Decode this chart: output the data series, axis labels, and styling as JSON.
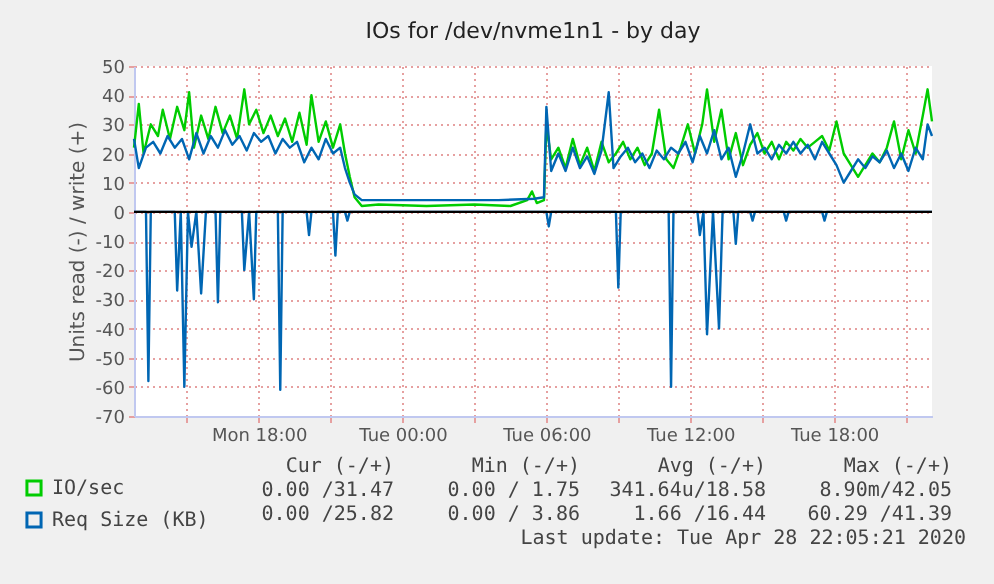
{
  "chart_data": {
    "type": "line",
    "title": "IOs for /dev/nvme1n1 - by day",
    "ylabel": "Units read (-) / write (+)",
    "xlim": [
      "2020-04-27T12:48",
      "2020-04-28T22:05"
    ],
    "ylim": [
      -70,
      50
    ],
    "xticks": [
      {
        "value": "2020-04-27T15:00",
        "label": null
      },
      {
        "value": "2020-04-27T18:00",
        "label": "Mon 18:00"
      },
      {
        "value": "2020-04-27T21:00",
        "label": null
      },
      {
        "value": "2020-04-28T00:00",
        "label": "Tue 00:00"
      },
      {
        "value": "2020-04-28T03:00",
        "label": null
      },
      {
        "value": "2020-04-28T06:00",
        "label": "Tue 06:00"
      },
      {
        "value": "2020-04-28T09:00",
        "label": null
      },
      {
        "value": "2020-04-28T12:00",
        "label": "Tue 12:00"
      },
      {
        "value": "2020-04-28T15:00",
        "label": null
      },
      {
        "value": "2020-04-28T18:00",
        "label": "Tue 18:00"
      },
      {
        "value": "2020-04-28T21:00",
        "label": null
      }
    ],
    "yticks": [
      -70,
      -60,
      -50,
      -40,
      -30,
      -20,
      -10,
      0,
      10,
      20,
      30,
      40,
      50
    ],
    "grid": true,
    "legend": "bottom left",
    "marker": "none",
    "line_style": "solid",
    "ref_lines": [
      {
        "axis": "y",
        "value": 0,
        "label": null,
        "color": "#000000"
      }
    ],
    "series": [
      {
        "name": "IO/sec",
        "color": "#00cc00",
        "x": [
          "2020-04-27T12:48",
          "2020-04-27T13:00",
          "2020-04-27T13:12",
          "2020-04-27T13:30",
          "2020-04-27T13:48",
          "2020-04-27T14:00",
          "2020-04-27T14:18",
          "2020-04-27T14:36",
          "2020-04-27T14:54",
          "2020-04-27T15:06",
          "2020-04-27T15:18",
          "2020-04-27T15:36",
          "2020-04-27T15:54",
          "2020-04-27T16:12",
          "2020-04-27T16:30",
          "2020-04-27T16:48",
          "2020-04-27T17:06",
          "2020-04-27T17:24",
          "2020-04-27T17:36",
          "2020-04-27T17:54",
          "2020-04-27T18:12",
          "2020-04-27T18:30",
          "2020-04-27T18:48",
          "2020-04-27T19:06",
          "2020-04-27T19:24",
          "2020-04-27T19:42",
          "2020-04-27T20:00",
          "2020-04-27T20:12",
          "2020-04-27T20:30",
          "2020-04-27T20:48",
          "2020-04-27T21:06",
          "2020-04-27T21:24",
          "2020-04-27T21:36",
          "2020-04-27T21:48",
          "2020-04-27T22:00",
          "2020-04-27T22:18",
          "2020-04-27T23:00",
          "2020-04-28T01:00",
          "2020-04-28T03:00",
          "2020-04-28T04:30",
          "2020-04-28T05:12",
          "2020-04-28T05:24",
          "2020-04-28T05:36",
          "2020-04-28T05:54",
          "2020-04-28T06:00",
          "2020-04-28T06:12",
          "2020-04-28T06:30",
          "2020-04-28T06:48",
          "2020-04-28T07:06",
          "2020-04-28T07:24",
          "2020-04-28T07:42",
          "2020-04-28T08:00",
          "2020-04-28T08:18",
          "2020-04-28T08:36",
          "2020-04-28T08:54",
          "2020-04-28T09:12",
          "2020-04-28T09:30",
          "2020-04-28T09:48",
          "2020-04-28T10:06",
          "2020-04-28T10:24",
          "2020-04-28T10:42",
          "2020-04-28T11:00",
          "2020-04-28T11:18",
          "2020-04-28T11:36",
          "2020-04-28T11:54",
          "2020-04-28T12:12",
          "2020-04-28T12:30",
          "2020-04-28T12:42",
          "2020-04-28T13:00",
          "2020-04-28T13:18",
          "2020-04-28T13:36",
          "2020-04-28T13:54",
          "2020-04-28T14:12",
          "2020-04-28T14:30",
          "2020-04-28T14:48",
          "2020-04-28T15:06",
          "2020-04-28T15:24",
          "2020-04-28T15:42",
          "2020-04-28T16:00",
          "2020-04-28T16:18",
          "2020-04-28T16:36",
          "2020-04-28T16:54",
          "2020-04-28T17:12",
          "2020-04-28T17:30",
          "2020-04-28T17:48",
          "2020-04-28T18:06",
          "2020-04-28T18:24",
          "2020-04-28T18:42",
          "2020-04-28T19:00",
          "2020-04-28T19:18",
          "2020-04-28T19:36",
          "2020-04-28T19:54",
          "2020-04-28T20:12",
          "2020-04-28T20:30",
          "2020-04-28T20:48",
          "2020-04-28T21:06",
          "2020-04-28T21:24",
          "2020-04-28T21:42",
          "2020-04-28T21:54",
          "2020-04-28T22:05"
        ],
        "values": [
          22,
          37,
          20,
          30,
          26,
          35,
          25,
          36,
          28,
          41,
          22,
          33,
          25,
          36,
          27,
          33,
          25,
          42,
          30,
          35,
          27,
          33,
          26,
          32,
          24,
          34,
          23,
          40,
          24,
          31,
          22,
          30,
          20,
          12,
          5,
          2,
          2.5,
          2,
          2.5,
          2,
          4,
          7,
          3,
          4,
          30,
          18,
          22,
          15,
          25,
          16,
          22,
          14,
          24,
          17,
          20,
          24,
          18,
          22,
          16,
          20,
          35,
          18,
          15,
          22,
          30,
          20,
          30,
          42,
          24,
          35,
          18,
          27,
          16,
          23,
          27,
          20,
          24,
          18,
          24,
          21,
          25,
          22,
          24,
          26,
          21,
          31,
          20,
          16,
          12,
          16,
          20,
          17,
          22,
          31,
          18,
          28,
          20,
          33,
          42,
          31
        ]
      },
      {
        "name": "Req Size (KB)",
        "color": "#0066b3",
        "x": [
          "2020-04-27T12:48",
          "2020-04-27T13:00",
          "2020-04-27T13:18",
          "2020-04-27T13:36",
          "2020-04-27T13:54",
          "2020-04-27T14:12",
          "2020-04-27T14:30",
          "2020-04-27T14:48",
          "2020-04-27T15:06",
          "2020-04-27T15:24",
          "2020-04-27T15:42",
          "2020-04-27T16:00",
          "2020-04-27T16:18",
          "2020-04-27T16:36",
          "2020-04-27T16:54",
          "2020-04-27T17:12",
          "2020-04-27T17:30",
          "2020-04-27T17:48",
          "2020-04-27T18:06",
          "2020-04-27T18:24",
          "2020-04-27T18:42",
          "2020-04-27T19:00",
          "2020-04-27T19:18",
          "2020-04-27T19:36",
          "2020-04-27T19:54",
          "2020-04-27T20:12",
          "2020-04-27T20:30",
          "2020-04-27T20:48",
          "2020-04-27T21:06",
          "2020-04-27T21:24",
          "2020-04-27T21:36",
          "2020-04-27T21:48",
          "2020-04-27T22:00",
          "2020-04-27T22:18",
          "2020-04-28T00:00",
          "2020-04-28T02:00",
          "2020-04-28T04:00",
          "2020-04-28T05:30",
          "2020-04-28T05:54",
          "2020-04-28T06:00",
          "2020-04-28T06:12",
          "2020-04-28T06:30",
          "2020-04-28T06:48",
          "2020-04-28T07:06",
          "2020-04-28T07:24",
          "2020-04-28T07:42",
          "2020-04-28T08:00",
          "2020-04-28T08:18",
          "2020-04-28T08:36",
          "2020-04-28T08:48",
          "2020-04-28T09:06",
          "2020-04-28T09:24",
          "2020-04-28T09:42",
          "2020-04-28T10:00",
          "2020-04-28T10:18",
          "2020-04-28T10:36",
          "2020-04-28T10:54",
          "2020-04-28T11:12",
          "2020-04-28T11:30",
          "2020-04-28T11:48",
          "2020-04-28T12:06",
          "2020-04-28T12:24",
          "2020-04-28T12:42",
          "2020-04-28T13:00",
          "2020-04-28T13:18",
          "2020-04-28T13:36",
          "2020-04-28T13:54",
          "2020-04-28T14:12",
          "2020-04-28T14:30",
          "2020-04-28T14:48",
          "2020-04-28T15:06",
          "2020-04-28T15:24",
          "2020-04-28T15:42",
          "2020-04-28T16:00",
          "2020-04-28T16:18",
          "2020-04-28T16:36",
          "2020-04-28T16:54",
          "2020-04-28T17:12",
          "2020-04-28T17:30",
          "2020-04-28T17:48",
          "2020-04-28T18:06",
          "2020-04-28T18:24",
          "2020-04-28T18:42",
          "2020-04-28T19:00",
          "2020-04-28T19:18",
          "2020-04-28T19:36",
          "2020-04-28T19:54",
          "2020-04-28T20:12",
          "2020-04-28T20:30",
          "2020-04-28T20:48",
          "2020-04-28T21:06",
          "2020-04-28T21:24",
          "2020-04-28T21:42",
          "2020-04-28T21:54",
          "2020-04-28T22:05"
        ],
        "values": [
          25,
          15,
          22,
          24,
          20,
          26,
          22,
          25,
          18,
          27,
          20,
          26,
          22,
          28,
          23,
          26,
          21,
          27,
          24,
          26,
          20,
          25,
          22,
          24,
          17,
          22,
          18,
          25,
          20,
          22,
          15,
          10,
          6,
          4,
          4,
          4,
          4,
          4.5,
          5,
          36,
          14,
          20,
          14,
          22,
          15,
          19,
          13,
          21,
          41,
          15,
          19,
          22,
          17,
          20,
          15,
          21,
          18,
          22,
          20,
          24,
          17,
          26,
          20,
          28,
          18,
          22,
          12,
          20,
          30,
          20,
          22,
          18,
          23,
          20,
          24,
          20,
          23,
          18,
          24,
          20,
          16,
          10,
          14,
          18,
          15,
          19,
          17,
          21,
          15,
          20,
          14,
          22,
          18,
          30,
          26
        ]
      },
      {
        "color": "#0066b3",
        "x": [
          "2020-04-27T12:48",
          "2020-04-27T13:18",
          "2020-04-27T13:24",
          "2020-04-27T13:30",
          "2020-04-27T14:30",
          "2020-04-27T14:36",
          "2020-04-27T14:45",
          "2020-04-27T14:54",
          "2020-04-27T15:03",
          "2020-04-27T15:12",
          "2020-04-27T15:24",
          "2020-04-27T15:36",
          "2020-04-27T15:48",
          "2020-04-27T16:12",
          "2020-04-27T16:18",
          "2020-04-27T16:24",
          "2020-04-27T17:18",
          "2020-04-27T17:24",
          "2020-04-27T17:36",
          "2020-04-27T17:48",
          "2020-04-27T17:54",
          "2020-04-27T18:48",
          "2020-04-27T18:54",
          "2020-04-27T19:00",
          "2020-04-27T20:00",
          "2020-04-27T20:06",
          "2020-04-27T20:12",
          "2020-04-27T21:06",
          "2020-04-27T21:12",
          "2020-04-27T21:18",
          "2020-04-27T21:36",
          "2020-04-27T21:42",
          "2020-04-27T21:48",
          "2020-04-28T06:00",
          "2020-04-28T06:06",
          "2020-04-28T06:12",
          "2020-04-28T08:54",
          "2020-04-28T09:00",
          "2020-04-28T09:06",
          "2020-04-28T11:06",
          "2020-04-28T11:12",
          "2020-04-28T11:18",
          "2020-04-28T12:18",
          "2020-04-28T12:24",
          "2020-04-28T12:33",
          "2020-04-28T12:42",
          "2020-04-28T12:57",
          "2020-04-28T13:12",
          "2020-04-28T13:21",
          "2020-04-28T13:48",
          "2020-04-28T13:54",
          "2020-04-28T14:00",
          "2020-04-28T14:30",
          "2020-04-28T14:36",
          "2020-04-28T14:42",
          "2020-04-28T15:54",
          "2020-04-28T16:00",
          "2020-04-28T16:06",
          "2020-04-28T17:30",
          "2020-04-28T17:36",
          "2020-04-28T17:42",
          "2020-04-28T22:05"
        ],
        "values": [
          0,
          0,
          -58,
          0,
          0,
          -27,
          0,
          -60,
          0,
          -12,
          0,
          -28,
          0,
          0,
          -31,
          0,
          0,
          -20,
          0,
          -30,
          0,
          0,
          -61,
          0,
          0,
          -8,
          0,
          0,
          -15,
          0,
          0,
          -3,
          0,
          0,
          -5,
          0,
          0,
          -26,
          0,
          0,
          -60,
          0,
          0,
          -8,
          0,
          -42,
          0,
          -40,
          0,
          0,
          -11,
          0,
          0,
          -3,
          0,
          0,
          -3,
          0,
          0,
          -3,
          0,
          0
        ]
      }
    ],
    "annotations": [
      "Cur (-/+)",
      "Min (-/+)",
      "Avg (-/+)",
      "Max (-/+)",
      "0.00 /31.47",
      "0.00 / 1.75",
      "341.64u/18.58",
      "8.90m/42.05",
      "0.00 /25.82",
      "0.00 / 3.86",
      "1.66 /16.44",
      "60.29 /41.39",
      "Last update: Tue Apr 28 22:05:21 2020"
    ]
  }
}
